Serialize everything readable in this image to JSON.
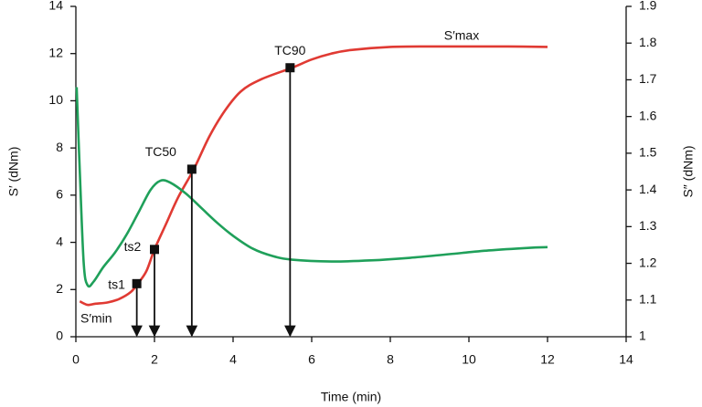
{
  "chart_data": {
    "type": "line",
    "x_label": "Time (min)",
    "y_label": "S′ (dNm)",
    "y2_label": "S″ (dNm)",
    "xlim": [
      0,
      14
    ],
    "xticks": [
      0,
      2,
      4,
      6,
      8,
      10,
      12,
      14
    ],
    "ylim": [
      0,
      14
    ],
    "yticks": [
      0,
      2,
      4,
      6,
      8,
      10,
      12,
      14
    ],
    "y2lim": [
      1,
      1.9
    ],
    "y2ticks": [
      1,
      1.1,
      1.2,
      1.3,
      1.4,
      1.5,
      1.6,
      1.7,
      1.8,
      1.9
    ],
    "series": [
      {
        "color": "#e03a33",
        "axis": "y",
        "x": [
          0.1,
          0.3,
          0.5,
          0.8,
          1.1,
          1.4,
          1.6,
          1.8,
          2.0,
          2.3,
          2.6,
          3.0,
          3.4,
          3.8,
          4.2,
          4.7,
          5.5,
          6.0,
          6.5,
          7.0,
          8.0,
          9.0,
          10.0,
          11.0,
          12.0
        ],
        "values": [
          1.5,
          1.35,
          1.4,
          1.45,
          1.6,
          1.9,
          2.3,
          2.8,
          3.7,
          4.8,
          5.9,
          7.1,
          8.5,
          9.6,
          10.4,
          10.9,
          11.4,
          11.75,
          12.0,
          12.15,
          12.28,
          12.3,
          12.3,
          12.3,
          12.28
        ]
      },
      {
        "color": "#1fa05a",
        "axis": "y2",
        "x": [
          0.02,
          0.1,
          0.2,
          0.3,
          0.45,
          0.7,
          1.0,
          1.3,
          1.6,
          1.9,
          2.15,
          2.4,
          2.8,
          3.2,
          3.6,
          4.0,
          4.5,
          5.0,
          5.5,
          6.5,
          7.5,
          8.5,
          9.5,
          10.5,
          11.5,
          12.0
        ],
        "values": [
          1.68,
          1.45,
          1.2,
          1.14,
          1.15,
          1.19,
          1.23,
          1.28,
          1.34,
          1.4,
          1.425,
          1.42,
          1.39,
          1.35,
          1.31,
          1.275,
          1.24,
          1.22,
          1.21,
          1.205,
          1.208,
          1.215,
          1.225,
          1.235,
          1.242,
          1.244
        ]
      }
    ],
    "annotations": [
      {
        "label": "ts1",
        "x": 1.55,
        "y": 2.25
      },
      {
        "label": "ts2",
        "x": 2.0,
        "y": 3.7
      },
      {
        "label": "TC50",
        "x": 2.95,
        "y": 7.1
      },
      {
        "label": "TC90",
        "x": 5.45,
        "y": 11.4
      }
    ],
    "labels": [
      "S′min",
      "S′max"
    ]
  }
}
